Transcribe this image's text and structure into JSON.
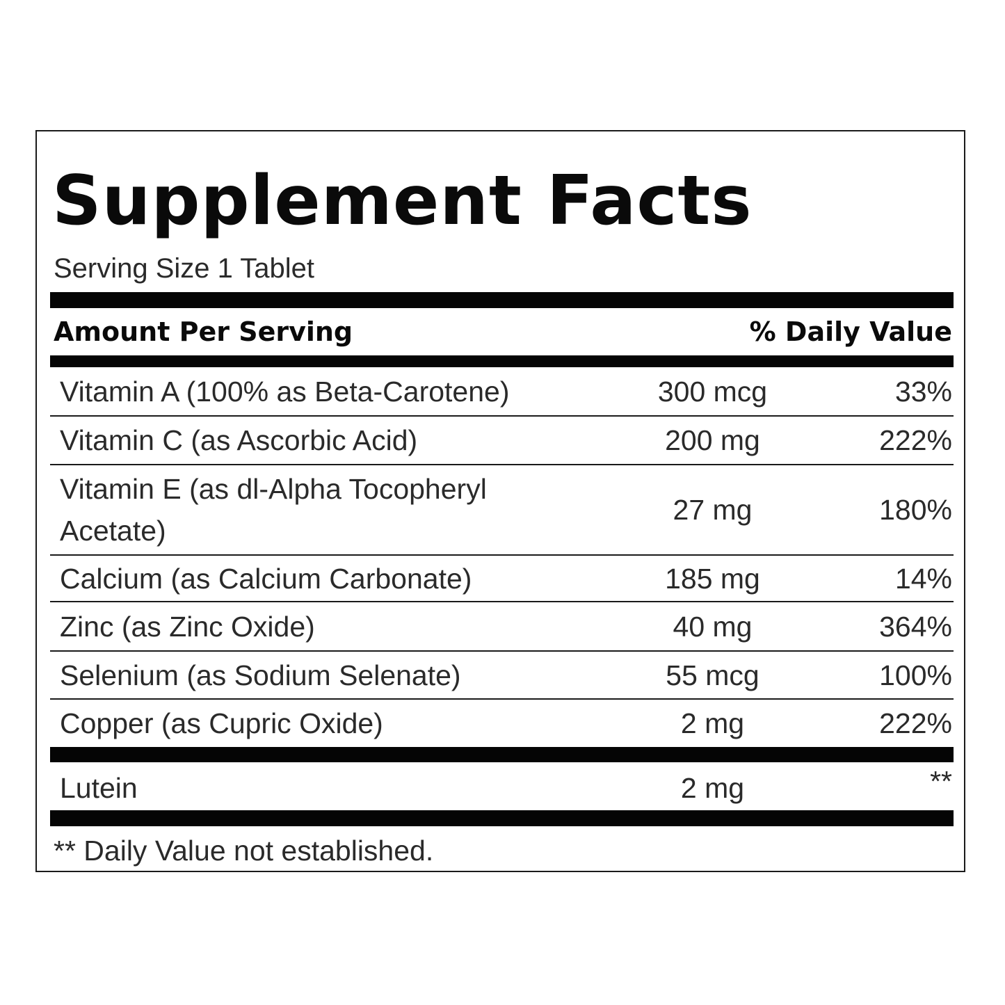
{
  "label": {
    "title": "Supplement Facts",
    "serving_size": "Serving Size 1 Tablet",
    "header_left": "Amount Per Serving",
    "header_right": "% Daily Value",
    "nutrients": [
      {
        "name": "Vitamin A (100% as Beta-Carotene)",
        "amount": "300 mcg",
        "dv": "33%"
      },
      {
        "name": "Vitamin C (as Ascorbic Acid)",
        "amount": "200 mg",
        "dv": "222%"
      },
      {
        "name": "Vitamin E (as dl-Alpha Tocopheryl Acetate)",
        "amount": "27 mg",
        "dv": "180%"
      },
      {
        "name": "Calcium (as Calcium Carbonate)",
        "amount": "185 mg",
        "dv": "14%"
      },
      {
        "name": "Zinc (as Zinc Oxide)",
        "amount": "40 mg",
        "dv": "364%"
      },
      {
        "name": "Selenium (as Sodium Selenate)",
        "amount": "55 mcg",
        "dv": "100%"
      },
      {
        "name": "Copper (as Cupric Oxide)",
        "amount": "2 mg",
        "dv": "222%"
      }
    ],
    "other": {
      "name": "Lutein",
      "amount": "2 mg",
      "dv": "**"
    },
    "footnote": "** Daily Value not established."
  }
}
